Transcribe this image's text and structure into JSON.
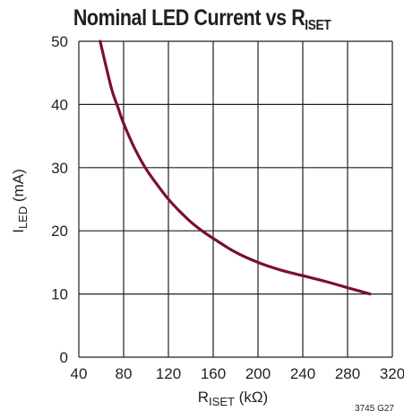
{
  "chart_data": {
    "type": "line",
    "title_main": "Nominal LED Current vs R",
    "title_sub": "ISET",
    "xlabel_main": "R",
    "xlabel_sub": "ISET",
    "xlabel_unit": " (kΩ)",
    "ylabel_main": "I",
    "ylabel_sub": "LED",
    "ylabel_unit": " (mA)",
    "xlim": [
      40,
      320
    ],
    "ylim": [
      0,
      50
    ],
    "xticks": [
      40,
      80,
      120,
      160,
      200,
      240,
      280,
      320
    ],
    "yticks": [
      0,
      10,
      20,
      30,
      40,
      50
    ],
    "grid": true,
    "ref_code": "3745 G27",
    "line_color": "#7a1030",
    "series": [
      {
        "x": [
          59,
          65,
          70,
          75,
          80,
          90,
          100,
          110,
          120,
          130,
          140,
          150,
          160,
          180,
          200,
          220,
          240,
          260,
          280,
          300
        ],
        "y": [
          50,
          45.5,
          42,
          39.5,
          37,
          33,
          29.8,
          27.3,
          25,
          23.1,
          21.4,
          20,
          18.8,
          16.6,
          15,
          13.8,
          12.9,
          12,
          11,
          10
        ]
      }
    ]
  }
}
